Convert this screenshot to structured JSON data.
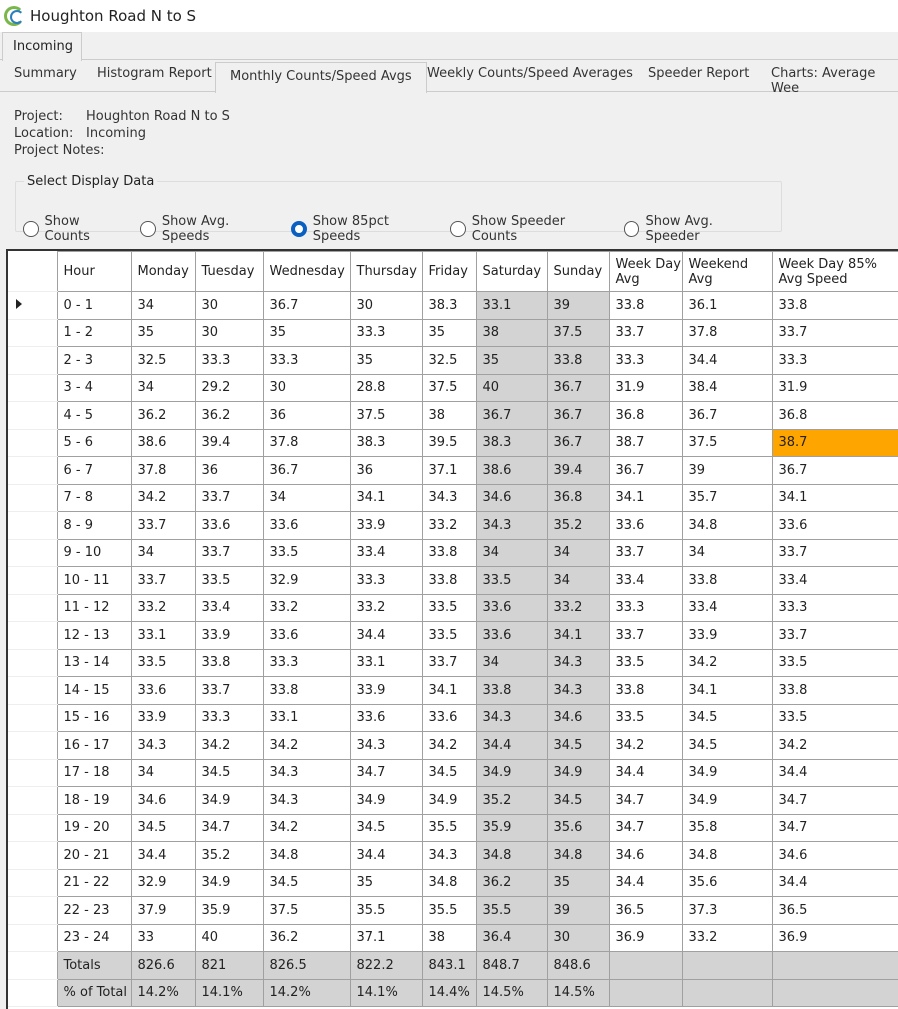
{
  "window": {
    "title": "Houghton Road N to S",
    "icon": "app-logo-icon"
  },
  "outer_tab": "Incoming",
  "tabs": [
    "Summary",
    "Histogram Report",
    "Monthly Counts/Speed Avgs",
    "Weekly Counts/Speed Averages",
    "Speeder Report",
    "Charts: Average Wee"
  ],
  "active_tab": "Monthly Counts/Speed Avgs",
  "info": {
    "project_label": "Project:",
    "project": "Houghton Road N to S",
    "location_label": "Location:",
    "location": "Incoming",
    "notes_label": "Project Notes:"
  },
  "display": {
    "legend": "Select Display Data",
    "options": [
      "Show Counts",
      "Show Avg. Speeds",
      "Show 85pct Speeds",
      "Show Speeder Counts",
      "Show Avg. Speeder"
    ],
    "selected": "Show 85pct Speeds"
  },
  "colors": {
    "highlight": "#ffa500",
    "weekend": "#d3d3d3",
    "radio": "#0a5fc2"
  },
  "table": {
    "columns": [
      "Hour",
      "Monday",
      "Tuesday",
      "Wednesday",
      "Thursday",
      "Friday",
      "Saturday",
      "Sunday",
      "Week Day Avg",
      "Weekend Avg",
      "Week Day 85% Avg Speed"
    ],
    "rows": [
      [
        "0 - 1",
        "34",
        "30",
        "36.7",
        "30",
        "38.3",
        "33.1",
        "39",
        "33.8",
        "36.1",
        "33.8"
      ],
      [
        "1 - 2",
        "35",
        "30",
        "35",
        "33.3",
        "35",
        "38",
        "37.5",
        "33.7",
        "37.8",
        "33.7"
      ],
      [
        "2 - 3",
        "32.5",
        "33.3",
        "33.3",
        "35",
        "32.5",
        "35",
        "33.8",
        "33.3",
        "34.4",
        "33.3"
      ],
      [
        "3 - 4",
        "34",
        "29.2",
        "30",
        "28.8",
        "37.5",
        "40",
        "36.7",
        "31.9",
        "38.4",
        "31.9"
      ],
      [
        "4 - 5",
        "36.2",
        "36.2",
        "36",
        "37.5",
        "38",
        "36.7",
        "36.7",
        "36.8",
        "36.7",
        "36.8"
      ],
      [
        "5 - 6",
        "38.6",
        "39.4",
        "37.8",
        "38.3",
        "39.5",
        "38.3",
        "36.7",
        "38.7",
        "37.5",
        "38.7"
      ],
      [
        "6 - 7",
        "37.8",
        "36",
        "36.7",
        "36",
        "37.1",
        "38.6",
        "39.4",
        "36.7",
        "39",
        "36.7"
      ],
      [
        "7 - 8",
        "34.2",
        "33.7",
        "34",
        "34.1",
        "34.3",
        "34.6",
        "36.8",
        "34.1",
        "35.7",
        "34.1"
      ],
      [
        "8 - 9",
        "33.7",
        "33.6",
        "33.6",
        "33.9",
        "33.2",
        "34.3",
        "35.2",
        "33.6",
        "34.8",
        "33.6"
      ],
      [
        "9 - 10",
        "34",
        "33.7",
        "33.5",
        "33.4",
        "33.8",
        "34",
        "34",
        "33.7",
        "34",
        "33.7"
      ],
      [
        "10 - 11",
        "33.7",
        "33.5",
        "32.9",
        "33.3",
        "33.8",
        "33.5",
        "34",
        "33.4",
        "33.8",
        "33.4"
      ],
      [
        "11 - 12",
        "33.2",
        "33.4",
        "33.2",
        "33.2",
        "33.5",
        "33.6",
        "33.2",
        "33.3",
        "33.4",
        "33.3"
      ],
      [
        "12 - 13",
        "33.1",
        "33.9",
        "33.6",
        "34.4",
        "33.5",
        "33.6",
        "34.1",
        "33.7",
        "33.9",
        "33.7"
      ],
      [
        "13 - 14",
        "33.5",
        "33.8",
        "33.3",
        "33.1",
        "33.7",
        "34",
        "34.3",
        "33.5",
        "34.2",
        "33.5"
      ],
      [
        "14 - 15",
        "33.6",
        "33.7",
        "33.8",
        "33.9",
        "34.1",
        "33.8",
        "34.3",
        "33.8",
        "34.1",
        "33.8"
      ],
      [
        "15 - 16",
        "33.9",
        "33.3",
        "33.1",
        "33.6",
        "33.6",
        "34.3",
        "34.6",
        "33.5",
        "34.5",
        "33.5"
      ],
      [
        "16 - 17",
        "34.3",
        "34.2",
        "34.2",
        "34.3",
        "34.2",
        "34.4",
        "34.5",
        "34.2",
        "34.5",
        "34.2"
      ],
      [
        "17 - 18",
        "34",
        "34.5",
        "34.3",
        "34.7",
        "34.5",
        "34.9",
        "34.9",
        "34.4",
        "34.9",
        "34.4"
      ],
      [
        "18 - 19",
        "34.6",
        "34.9",
        "34.3",
        "34.9",
        "34.9",
        "35.2",
        "34.5",
        "34.7",
        "34.9",
        "34.7"
      ],
      [
        "19 - 20",
        "34.5",
        "34.7",
        "34.2",
        "34.5",
        "35.5",
        "35.9",
        "35.6",
        "34.7",
        "35.8",
        "34.7"
      ],
      [
        "20 - 21",
        "34.4",
        "35.2",
        "34.8",
        "34.4",
        "34.3",
        "34.8",
        "34.8",
        "34.6",
        "34.8",
        "34.6"
      ],
      [
        "21 - 22",
        "32.9",
        "34.9",
        "34.5",
        "35",
        "34.8",
        "36.2",
        "35",
        "34.4",
        "35.6",
        "34.4"
      ],
      [
        "22 - 23",
        "37.9",
        "35.9",
        "37.5",
        "35.5",
        "35.5",
        "35.5",
        "39",
        "36.5",
        "37.3",
        "36.5"
      ],
      [
        "23 - 24",
        "33",
        "40",
        "36.2",
        "37.1",
        "38",
        "36.4",
        "30",
        "36.9",
        "33.2",
        "36.9"
      ]
    ],
    "footer": [
      [
        "Totals",
        "826.6",
        "821",
        "826.5",
        "822.2",
        "843.1",
        "848.7",
        "848.6",
        "",
        "",
        ""
      ],
      [
        "% of Total",
        "14.2%",
        "14.1%",
        "14.2%",
        "14.1%",
        "14.4%",
        "14.5%",
        "14.5%",
        "",
        "",
        ""
      ]
    ],
    "selected_row": "0 - 1",
    "highlighted_cell": {
      "row": "5 - 6",
      "column": "Week Day 85% Avg Speed"
    }
  }
}
